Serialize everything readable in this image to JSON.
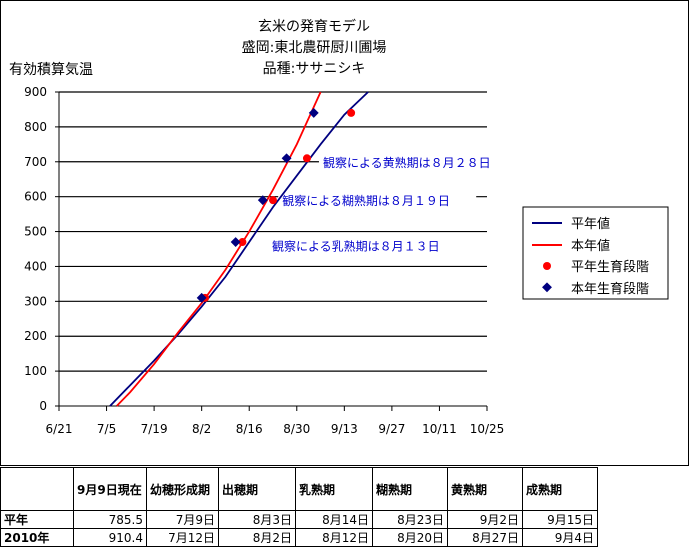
{
  "chart_data": {
    "type": "line",
    "title": "玄米の発育モデル",
    "subtitle1": "盛岡:東北農研厨川圃場",
    "subtitle2": "品種:ササニシキ",
    "ylabel": "有効積算気温",
    "xlabel": "",
    "ylim": [
      0,
      900
    ],
    "yticks": [
      0,
      100,
      200,
      300,
      400,
      500,
      600,
      700,
      800,
      900
    ],
    "xticks": [
      "6/21",
      "7/5",
      "7/19",
      "8/2",
      "8/16",
      "8/30",
      "9/13",
      "9/27",
      "10/11",
      "10/25"
    ],
    "grid": "horizontal",
    "legend_position": "right",
    "series": [
      {
        "name": "平年値",
        "color": "#000080",
        "style": "line",
        "x": [
          "7/6",
          "7/12",
          "7/19",
          "7/26",
          "8/2",
          "8/9",
          "8/16",
          "8/23",
          "8/30",
          "9/6",
          "9/13",
          "9/20"
        ],
        "values": [
          0,
          60,
          130,
          205,
          285,
          370,
          470,
          570,
          660,
          750,
          835,
          900
        ]
      },
      {
        "name": "本年値",
        "color": "#ff0000",
        "style": "line",
        "x": [
          "7/8",
          "7/12",
          "7/19",
          "7/26",
          "8/2",
          "8/9",
          "8/16",
          "8/23",
          "8/30",
          "9/6"
        ],
        "values": [
          0,
          40,
          120,
          210,
          295,
          390,
          500,
          620,
          750,
          900
        ]
      },
      {
        "name": "平年生育段階",
        "color": "#ff0000",
        "style": "marker",
        "x": [
          "8/3",
          "8/14",
          "8/23",
          "9/2",
          "9/15"
        ],
        "values": [
          310,
          470,
          590,
          710,
          840
        ]
      },
      {
        "name": "本年生育段階",
        "color": "#000080",
        "style": "marker",
        "x": [
          "8/2",
          "8/12",
          "8/20",
          "8/27",
          "9/4"
        ],
        "values": [
          310,
          470,
          590,
          710,
          840
        ]
      }
    ],
    "annotations": [
      {
        "text": "観察による黄熟期は８月２８日",
        "x": "9/2",
        "y": 700
      },
      {
        "text": "観察による糊熟期は８月１９日",
        "x": "8/21",
        "y": 590
      },
      {
        "text": "観察による乳熟期は８月１３日",
        "x": "8/18",
        "y": 460
      }
    ]
  },
  "table": {
    "headers": [
      "",
      "9月9日現在",
      "幼穂形成期",
      "出穂期",
      "乳熟期",
      "糊熟期",
      "黄熟期",
      "成熟期"
    ],
    "rows": [
      [
        "平年",
        "785.5",
        "7月9日",
        "8月3日",
        "8月14日",
        "8月23日",
        "9月2日",
        "9月15日"
      ],
      [
        "2010年",
        "910.4",
        "7月12日",
        "8月2日",
        "8月12日",
        "8月20日",
        "8月27日",
        "9月4日"
      ]
    ]
  }
}
